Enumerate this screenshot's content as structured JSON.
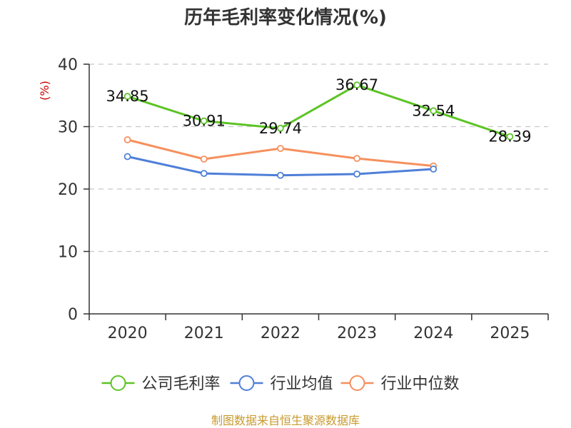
{
  "chart_data": {
    "type": "line",
    "title": "历年毛利率变化情况(%)",
    "ylabel": "(%)",
    "xlabel": "",
    "ylim": [
      0,
      40
    ],
    "yticks": [
      0,
      10,
      20,
      30,
      40
    ],
    "categories": [
      "2020",
      "2021",
      "2022",
      "2023",
      "2024",
      "2025"
    ],
    "grid": true,
    "legend_position": "bottom",
    "series": [
      {
        "name": "公司毛利率",
        "color": "#5cc424",
        "values": [
          34.85,
          30.91,
          29.74,
          36.67,
          32.54,
          28.39
        ],
        "labels": [
          "34.85",
          "30.91",
          "29.74",
          "36.67",
          "32.54",
          "28.39"
        ]
      },
      {
        "name": "行业均值",
        "color": "#4f7fd8",
        "values": [
          25.2,
          22.5,
          22.2,
          22.4,
          23.2,
          null
        ]
      },
      {
        "name": "行业中位数",
        "color": "#f6905e",
        "values": [
          27.9,
          24.8,
          26.5,
          24.9,
          23.7,
          null
        ]
      }
    ]
  },
  "footer": {
    "source": "制图数据来自恒生聚源数据库"
  }
}
